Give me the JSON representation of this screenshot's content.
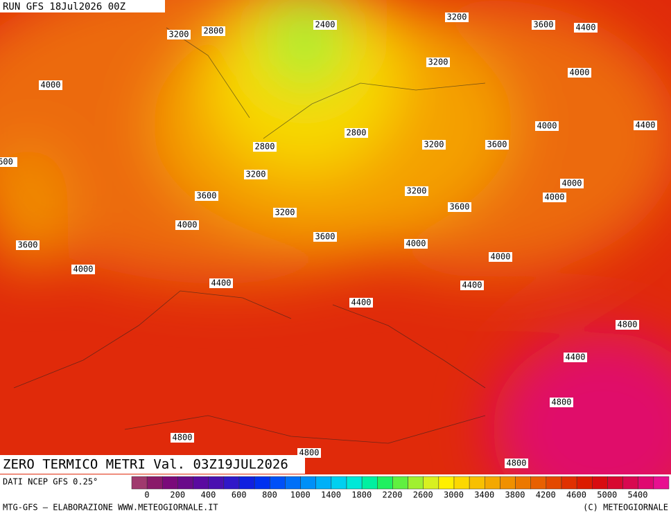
{
  "header": {
    "run": "RUN GFS 18Jul2026 00Z"
  },
  "map": {
    "title": "ZERO TERMICO METRI Val. 03Z19JUL2026",
    "contour_labels": [
      2400,
      2800,
      3200,
      3200,
      3600,
      4400,
      3200,
      4000,
      4000,
      4000,
      4400,
      2800,
      2800,
      3200,
      3600,
      600,
      3200,
      4000,
      3200,
      4000,
      3600,
      3600,
      3200,
      4000,
      3600,
      4000,
      3600,
      4000,
      4000,
      4400,
      4400,
      4400,
      4800,
      4400,
      4800,
      4800,
      4800,
      4800
    ]
  },
  "legend": {
    "source": "DATI NCEP GFS 0.25°",
    "colors": [
      "#a03a6e",
      "#8a1a6a",
      "#7a0a7a",
      "#6a0a8a",
      "#5a0aa0",
      "#4a10b0",
      "#3018c8",
      "#1020e0",
      "#0030f0",
      "#0050f8",
      "#0070f8",
      "#0090f8",
      "#00b0f8",
      "#00d0f0",
      "#00e8d8",
      "#00f0a0",
      "#20f060",
      "#60f040",
      "#a0f030",
      "#d8f020",
      "#fff000",
      "#fcd800",
      "#f8c000",
      "#f4a800",
      "#f09000",
      "#ec7800",
      "#e86000",
      "#e44800",
      "#e03000",
      "#dc1c00",
      "#d80c10",
      "#d80830",
      "#d80850",
      "#e00870",
      "#e81090"
    ],
    "ticks": [
      0,
      200,
      400,
      600,
      800,
      1000,
      1400,
      1800,
      2200,
      2600,
      3000,
      3400,
      3800,
      4200,
      4600,
      5000,
      5400
    ]
  },
  "footer": {
    "left": "MTG-GFS — ELABORAZIONE WWW.METEOGIORNALE.IT",
    "right": "(C) METEOGIORNALE"
  }
}
